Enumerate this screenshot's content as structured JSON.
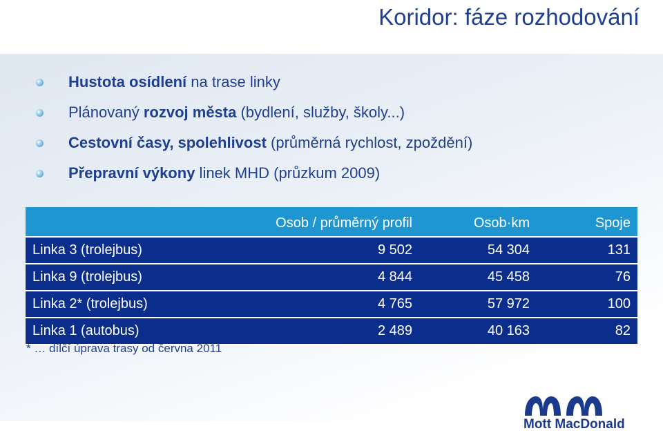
{
  "title": "Koridor: fáze rozhodování",
  "bullets": [
    {
      "bold": "Hustota osídlení",
      "text": " na trase linky"
    },
    {
      "pre": "Plánovaný ",
      "bold": "rozvoj města",
      "text": " (bydlení, služby, školy...)"
    },
    {
      "bold": "Cestovní časy, spolehlivost",
      "text": " (průměrná rychlost, zpoždění)"
    },
    {
      "bold": "Přepravní výkony",
      "text": " linek MHD (průzkum 2009)"
    }
  ],
  "table": {
    "headers": [
      "",
      "Osob / průměrný profil",
      "Osob·km",
      "Spoje"
    ],
    "rows": [
      [
        "Linka 3 (trolejbus)",
        "9 502",
        "54 304",
        "131"
      ],
      [
        "Linka 9 (trolejbus)",
        "4 844",
        "45 458",
        "76"
      ],
      [
        "Linka 2* (trolejbus)",
        "4 765",
        "57 972",
        "100"
      ],
      [
        "Linka 1 (autobus)",
        "2 489",
        "40 163",
        "82"
      ]
    ]
  },
  "note": "* … dílčí úprava trasy od června 2011",
  "logo": {
    "text": "Mott MacDonald",
    "color": "#1a3a8c"
  },
  "colors": {
    "title": "#1f3f8f",
    "header_row": "#1e96d2",
    "body_row": "#0b2d8c"
  }
}
